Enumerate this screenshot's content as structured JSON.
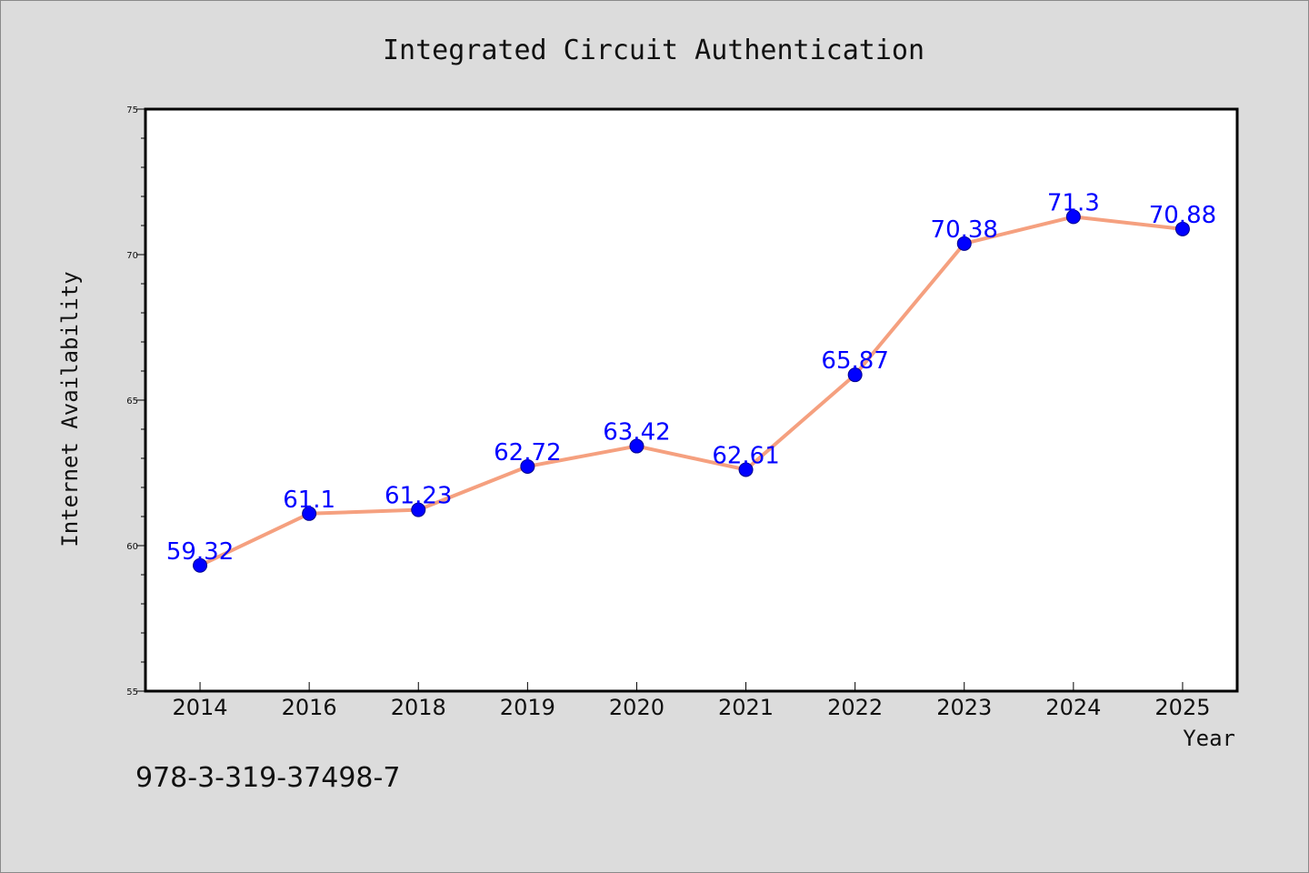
{
  "chart_data": {
    "type": "line",
    "title": "Integrated Circuit Authentication",
    "xlabel": "Year",
    "ylabel": "Internet Availability",
    "categories": [
      "2014",
      "2016",
      "2018",
      "2019",
      "2020",
      "2021",
      "2022",
      "2023",
      "2024",
      "2025"
    ],
    "series": [
      {
        "values": [
          59.32,
          61.1,
          61.23,
          62.72,
          63.42,
          62.61,
          65.87,
          70.38,
          71.3,
          70.88
        ],
        "data_labels": [
          "59.32",
          "61.1",
          "61.23",
          "62.72",
          "63.42",
          "62.61",
          "65.87",
          "70.38",
          "71.3",
          "70.88"
        ]
      }
    ],
    "ylim": [
      55,
      75
    ],
    "yticks": [
      55,
      60,
      65,
      70,
      75
    ],
    "ytick_labels": [
      "55",
      "60",
      "65",
      "70",
      "75"
    ],
    "grid": false,
    "legend": "none",
    "colors": {
      "line": "#f5a07f",
      "marker": "#0000ff",
      "data_label": "#0000ff",
      "background": "#dcdcdc",
      "plot_background": "#ffffff"
    }
  },
  "footer": {
    "isbn": "978-3-319-37498-7"
  }
}
